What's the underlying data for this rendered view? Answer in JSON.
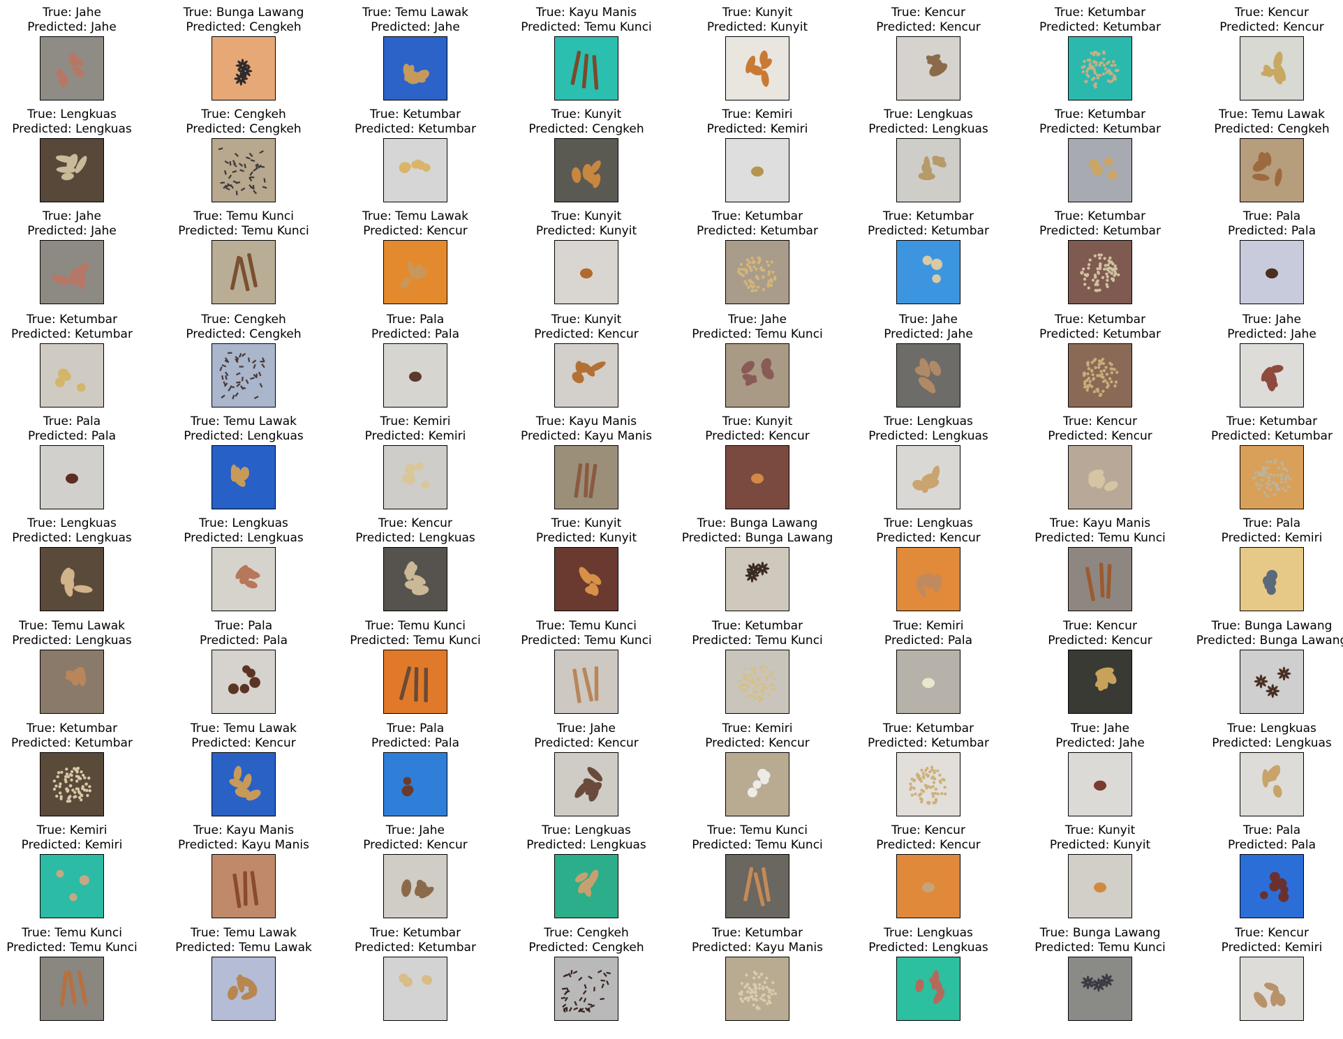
{
  "figure": {
    "label_true_prefix": "True: ",
    "label_pred_prefix": "Predicted: "
  },
  "panels": [
    {
      "true": "Jahe",
      "predicted": "Jahe",
      "bg": "#8f8c86",
      "obj": "#b77766",
      "kind": "rhizome"
    },
    {
      "true": "Bunga Lawang",
      "predicted": "Cengkeh",
      "bg": "#e7a877",
      "obj": "#2e2a2c",
      "kind": "star"
    },
    {
      "true": "Temu Lawak",
      "predicted": "Jahe",
      "bg": "#2b63c9",
      "obj": "#c69a5a",
      "kind": "rhizome"
    },
    {
      "true": "Kayu Manis",
      "predicted": "Temu Kunci",
      "bg": "#2bbfb0",
      "obj": "#7a4a2c",
      "kind": "stick"
    },
    {
      "true": "Kunyit",
      "predicted": "Kunyit",
      "bg": "#e9e5df",
      "obj": "#c87a35",
      "kind": "rhizome"
    },
    {
      "true": "Kencur",
      "predicted": "Kencur",
      "bg": "#d6d3ce",
      "obj": "#8b6a4a",
      "kind": "rhizome"
    },
    {
      "true": "Ketumbar",
      "predicted": "Ketumbar",
      "bg": "#2bb9ad",
      "obj": "#c9ae86",
      "kind": "seeds"
    },
    {
      "true": "Kencur",
      "predicted": "Kencur",
      "bg": "#d9d9d4",
      "obj": "#c9a862",
      "kind": "rhizome"
    },
    {
      "true": "Lengkuas",
      "predicted": "Lengkuas",
      "bg": "#57483a",
      "obj": "#c9ba9a",
      "kind": "rhizome"
    },
    {
      "true": "Cengkeh",
      "predicted": "Cengkeh",
      "bg": "#b7a88e",
      "obj": "#3f3a3e",
      "kind": "cloves"
    },
    {
      "true": "Ketumbar",
      "predicted": "Ketumbar",
      "bg": "#d6d6d6",
      "obj": "#d9b46a",
      "kind": "few"
    },
    {
      "true": "Kunyit",
      "predicted": "Cengkeh",
      "bg": "#5b5a52",
      "obj": "#c8873f",
      "kind": "rhizome"
    },
    {
      "true": "Kemiri",
      "predicted": "Kemiri",
      "bg": "#dedede",
      "obj": "#b69350",
      "kind": "single"
    },
    {
      "true": "Lengkuas",
      "predicted": "Lengkuas",
      "bg": "#cfcdc8",
      "obj": "#b59a6a",
      "kind": "rhizome"
    },
    {
      "true": "Ketumbar",
      "predicted": "Ketumbar",
      "bg": "#a8aab2",
      "obj": "#c9a668",
      "kind": "few"
    },
    {
      "true": "Temu Lawak",
      "predicted": "Cengkeh",
      "bg": "#b69d7c",
      "obj": "#9c6a3e",
      "kind": "rhizome"
    },
    {
      "true": "Jahe",
      "predicted": "Jahe",
      "bg": "#8d8a84",
      "obj": "#b77766",
      "kind": "rhizome"
    },
    {
      "true": "Temu Kunci",
      "predicted": "Temu Kunci",
      "bg": "#b9ad96",
      "obj": "#7a5030",
      "kind": "stick"
    },
    {
      "true": "Temu Lawak",
      "predicted": "Kencur",
      "bg": "#e48a2e",
      "obj": "#c9975a",
      "kind": "rhizome"
    },
    {
      "true": "Kunyit",
      "predicted": "Kunyit",
      "bg": "#d9d6d1",
      "obj": "#b06a2c",
      "kind": "single"
    },
    {
      "true": "Ketumbar",
      "predicted": "Ketumbar",
      "bg": "#a99c8a",
      "obj": "#d4b57a",
      "kind": "seeds"
    },
    {
      "true": "Ketumbar",
      "predicted": "Ketumbar",
      "bg": "#3d95e0",
      "obj": "#d9caa2",
      "kind": "few"
    },
    {
      "true": "Ketumbar",
      "predicted": "Ketumbar",
      "bg": "#7e5a50",
      "obj": "#cfc2a0",
      "kind": "seeds"
    },
    {
      "true": "Pala",
      "predicted": "Pala",
      "bg": "#c8cbdc",
      "obj": "#4a2e20",
      "kind": "single"
    },
    {
      "true": "Ketumbar",
      "predicted": "Ketumbar",
      "bg": "#cfcbc3",
      "obj": "#d4b56a",
      "kind": "few"
    },
    {
      "true": "Cengkeh",
      "predicted": "Cengkeh",
      "bg": "#a9b6cc",
      "obj": "#4a3a36",
      "kind": "cloves"
    },
    {
      "true": "Pala",
      "predicted": "Pala",
      "bg": "#d7d5d0",
      "obj": "#5a3a2a",
      "kind": "single"
    },
    {
      "true": "Kunyit",
      "predicted": "Kencur",
      "bg": "#d3cfca",
      "obj": "#b27034",
      "kind": "rhizome"
    },
    {
      "true": "Jahe",
      "predicted": "Temu Kunci",
      "bg": "#a99a86",
      "obj": "#8a5a56",
      "kind": "rhizome"
    },
    {
      "true": "Jahe",
      "predicted": "Jahe",
      "bg": "#6e6c68",
      "obj": "#b08a66",
      "kind": "rhizome"
    },
    {
      "true": "Ketumbar",
      "predicted": "Ketumbar",
      "bg": "#8a6a56",
      "obj": "#c9ad7a",
      "kind": "seeds"
    },
    {
      "true": "Jahe",
      "predicted": "Jahe",
      "bg": "#dedcd8",
      "obj": "#8e4a3e",
      "kind": "rhizome"
    },
    {
      "true": "Pala",
      "predicted": "Pala",
      "bg": "#d2d0cc",
      "obj": "#5c2e22",
      "kind": "single"
    },
    {
      "true": "Temu Lawak",
      "predicted": "Lengkuas",
      "bg": "#2760c6",
      "obj": "#c89a5a",
      "kind": "rhizome"
    },
    {
      "true": "Kemiri",
      "predicted": "Kemiri",
      "bg": "#cfcdc9",
      "obj": "#d9c79a",
      "kind": "few"
    },
    {
      "true": "Kayu Manis",
      "predicted": "Kayu Manis",
      "bg": "#9c8f7a",
      "obj": "#8a5a40",
      "kind": "stick"
    },
    {
      "true": "Kunyit",
      "predicted": "Kencur",
      "bg": "#7a4a40",
      "obj": "#d08a46",
      "kind": "single"
    },
    {
      "true": "Lengkuas",
      "predicted": "Lengkuas",
      "bg": "#d9d8d4",
      "obj": "#c9a46e",
      "kind": "rhizome"
    },
    {
      "true": "Kencur",
      "predicted": "Kencur",
      "bg": "#b8a898",
      "obj": "#d6c4a2",
      "kind": "rhizome"
    },
    {
      "true": "Ketumbar",
      "predicted": "Ketumbar",
      "bg": "#d9a05a",
      "obj": "#bdb39a",
      "kind": "seeds"
    },
    {
      "true": "Lengkuas",
      "predicted": "Lengkuas",
      "bg": "#5a4a3a",
      "obj": "#d2b48a",
      "kind": "rhizome"
    },
    {
      "true": "Lengkuas",
      "predicted": "Lengkuas",
      "bg": "#d6d2cc",
      "obj": "#b8765a",
      "kind": "rhizome"
    },
    {
      "true": "Kencur",
      "predicted": "Lengkuas",
      "bg": "#56524e",
      "obj": "#cbb896",
      "kind": "rhizome"
    },
    {
      "true": "Kunyit",
      "predicted": "Kunyit",
      "bg": "#6a3a30",
      "obj": "#d89048",
      "kind": "rhizome"
    },
    {
      "true": "Bunga Lawang",
      "predicted": "Bunga Lawang",
      "bg": "#cfc9bd",
      "obj": "#3a2a22",
      "kind": "star"
    },
    {
      "true": "Lengkuas",
      "predicted": "Kencur",
      "bg": "#e08a3a",
      "obj": "#c08a60",
      "kind": "rhizome"
    },
    {
      "true": "Kayu Manis",
      "predicted": "Temu Kunci",
      "bg": "#8e8680",
      "obj": "#9a5a30",
      "kind": "stick"
    },
    {
      "true": "Pala",
      "predicted": "Kemiri",
      "bg": "#e7c987",
      "obj": "#5a6a7a",
      "kind": "few"
    },
    {
      "true": "Temu Lawak",
      "predicted": "Lengkuas",
      "bg": "#8a7a6a",
      "obj": "#b8865a",
      "kind": "rhizome"
    },
    {
      "true": "Pala",
      "predicted": "Pala",
      "bg": "#d6d3ce",
      "obj": "#5a3424",
      "kind": "few"
    },
    {
      "true": "Temu Kunci",
      "predicted": "Temu Kunci",
      "bg": "#e07a2a",
      "obj": "#6a4a36",
      "kind": "stick"
    },
    {
      "true": "Temu Kunci",
      "predicted": "Temu Kunci",
      "bg": "#cdc8c2",
      "obj": "#b8865a",
      "kind": "stick"
    },
    {
      "true": "Ketumbar",
      "predicted": "Temu Kunci",
      "bg": "#c9c5bd",
      "obj": "#d6c086",
      "kind": "seeds"
    },
    {
      "true": "Kemiri",
      "predicted": "Pala",
      "bg": "#b6b2aa",
      "obj": "#ece6cc",
      "kind": "single"
    },
    {
      "true": "Kencur",
      "predicted": "Kencur",
      "bg": "#3a3a34",
      "obj": "#c8a25a",
      "kind": "rhizome"
    },
    {
      "true": "Bunga Lawang",
      "predicted": "Bunga Lawang",
      "bg": "#cfcfcf",
      "obj": "#4a2e22",
      "kind": "star"
    },
    {
      "true": "Ketumbar",
      "predicted": "Ketumbar",
      "bg": "#5a4a3a",
      "obj": "#d8c8a6",
      "kind": "seeds"
    },
    {
      "true": "Temu Lawak",
      "predicted": "Kencur",
      "bg": "#2962c4",
      "obj": "#c89a5a",
      "kind": "rhizome"
    },
    {
      "true": "Pala",
      "predicted": "Pala",
      "bg": "#2f7fd8",
      "obj": "#6a3a2a",
      "kind": "few"
    },
    {
      "true": "Jahe",
      "predicted": "Kencur",
      "bg": "#cfccc6",
      "obj": "#6a4a3a",
      "kind": "rhizome"
    },
    {
      "true": "Kemiri",
      "predicted": "Kencur",
      "bg": "#b9aa92",
      "obj": "#ecebe6",
      "kind": "few"
    },
    {
      "true": "Ketumbar",
      "predicted": "Ketumbar",
      "bg": "#e2dfda",
      "obj": "#cdb07a",
      "kind": "seeds"
    },
    {
      "true": "Jahe",
      "predicted": "Jahe",
      "bg": "#dcdad6",
      "obj": "#7a3a2e",
      "kind": "single"
    },
    {
      "true": "Lengkuas",
      "predicted": "Lengkuas",
      "bg": "#dedcd8",
      "obj": "#c8a46a",
      "kind": "rhizome"
    },
    {
      "true": "Kemiri",
      "predicted": "Kemiri",
      "bg": "#2cbba4",
      "obj": "#c6a886",
      "kind": "few"
    },
    {
      "true": "Kayu Manis",
      "predicted": "Kayu Manis",
      "bg": "#c08a6a",
      "obj": "#8a4a30",
      "kind": "stick"
    },
    {
      "true": "Jahe",
      "predicted": "Kencur",
      "bg": "#d0ccc6",
      "obj": "#8a6a4a",
      "kind": "rhizome"
    },
    {
      "true": "Lengkuas",
      "predicted": "Lengkuas",
      "bg": "#2cae8a",
      "obj": "#c8a070",
      "kind": "rhizome"
    },
    {
      "true": "Temu Kunci",
      "predicted": "Temu Kunci",
      "bg": "#6a6660",
      "obj": "#c48a56",
      "kind": "stick"
    },
    {
      "true": "Kencur",
      "predicted": "Kencur",
      "bg": "#e0893a",
      "obj": "#c6a47a",
      "kind": "single"
    },
    {
      "true": "Kunyit",
      "predicted": "Kunyit",
      "bg": "#d2cec8",
      "obj": "#d08a3e",
      "kind": "single"
    },
    {
      "true": "Pala",
      "predicted": "Pala",
      "bg": "#2c6ed8",
      "obj": "#6a3030",
      "kind": "few"
    },
    {
      "true": "Temu Kunci",
      "predicted": "Temu Kunci",
      "bg": "#8a8680",
      "obj": "#b8703e",
      "kind": "stick"
    },
    {
      "true": "Temu Lawak",
      "predicted": "Temu Lawak",
      "bg": "#b4bcd6",
      "obj": "#b8864e",
      "kind": "rhizome"
    },
    {
      "true": "Ketumbar",
      "predicted": "Ketumbar",
      "bg": "#d3d3d3",
      "obj": "#d8bd86",
      "kind": "few"
    },
    {
      "true": "Cengkeh",
      "predicted": "Cengkeh",
      "bg": "#b9b9b9",
      "obj": "#3a2420",
      "kind": "cloves"
    },
    {
      "true": "Ketumbar",
      "predicted": "Kayu Manis",
      "bg": "#b9ab92",
      "obj": "#d9cbab",
      "kind": "seeds"
    },
    {
      "true": "Lengkuas",
      "predicted": "Lengkuas",
      "bg": "#2cc0a0",
      "obj": "#b46a5a",
      "kind": "rhizome"
    },
    {
      "true": "Bunga Lawang",
      "predicted": "Temu Kunci",
      "bg": "#8a8a86",
      "obj": "#3a3a44",
      "kind": "star"
    },
    {
      "true": "Kencur",
      "predicted": "Kemiri",
      "bg": "#dedcd8",
      "obj": "#b8926a",
      "kind": "rhizome"
    }
  ]
}
